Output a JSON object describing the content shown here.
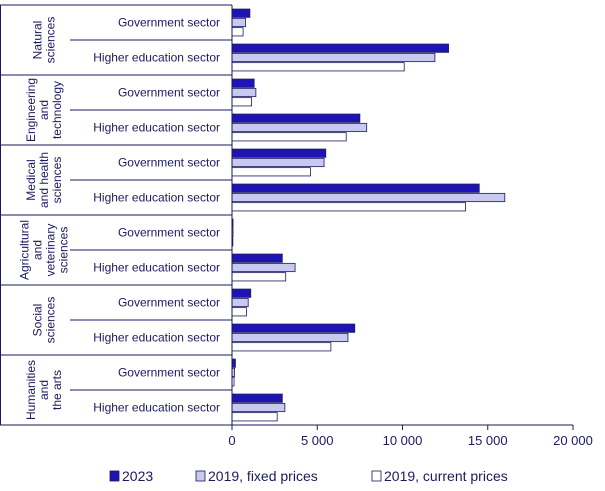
{
  "chart_data": {
    "type": "bar",
    "orientation": "horizontal",
    "title": "",
    "xlabel": "",
    "ylabel": "",
    "xlim": [
      0,
      20000
    ],
    "x_ticks": [
      0,
      5000,
      10000,
      15000,
      20000
    ],
    "x_tick_labels": [
      "0",
      "5 000",
      "10 000",
      "15 000",
      "20 000"
    ],
    "grid": false,
    "legend_position": "bottom",
    "colors": {
      "2023": "#1e14b4",
      "fixed": "#c8c8f0",
      "current": "#ffffff",
      "outline": "#1a1a5e"
    },
    "series": [
      {
        "name": "2023"
      },
      {
        "name": "2019, fixed prices"
      },
      {
        "name": "2019, current prices"
      }
    ],
    "groups": [
      {
        "label": [
          "Natural",
          "sciences"
        ],
        "rows": [
          {
            "label": "Government sector",
            "values": [
              1050,
              800,
              650
            ]
          },
          {
            "label": "Higher education sector",
            "values": [
              12700,
              11900,
              10100
            ]
          }
        ]
      },
      {
        "label": [
          "Engineering",
          "and",
          "technology"
        ],
        "rows": [
          {
            "label": "Government sector",
            "values": [
              1300,
              1400,
              1150
            ]
          },
          {
            "label": "Higher education sector",
            "values": [
              7500,
              7900,
              6700
            ]
          }
        ]
      },
      {
        "label": [
          "Medical",
          "and health",
          "sciences"
        ],
        "rows": [
          {
            "label": "Government sector",
            "values": [
              5500,
              5400,
              4600
            ]
          },
          {
            "label": "Higher education sector",
            "values": [
              14500,
              16000,
              13700
            ]
          }
        ]
      },
      {
        "label": [
          "Agricultural",
          "and",
          "veterinary",
          "sciences"
        ],
        "rows": [
          {
            "label": "Government sector",
            "values": [
              60,
              60,
              50
            ]
          },
          {
            "label": "Higher education sector",
            "values": [
              2950,
              3700,
              3150
            ]
          }
        ]
      },
      {
        "label": [
          "Social",
          "sciences"
        ],
        "rows": [
          {
            "label": "Government sector",
            "values": [
              1100,
              950,
              850
            ]
          },
          {
            "label": "Higher education sector",
            "values": [
              7200,
              6800,
              5800
            ]
          }
        ]
      },
      {
        "label": [
          "Humanities",
          "and",
          "the arts"
        ],
        "rows": [
          {
            "label": "Government sector",
            "values": [
              200,
              150,
              120
            ]
          },
          {
            "label": "Higher education sector",
            "values": [
              2950,
              3100,
              2650
            ]
          }
        ]
      }
    ]
  }
}
